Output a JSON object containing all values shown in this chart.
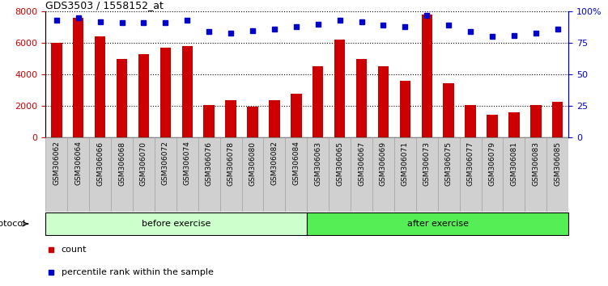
{
  "title": "GDS3503 / 1558152_at",
  "categories": [
    "GSM306062",
    "GSM306064",
    "GSM306066",
    "GSM306068",
    "GSM306070",
    "GSM306072",
    "GSM306074",
    "GSM306076",
    "GSM306078",
    "GSM306080",
    "GSM306082",
    "GSM306084",
    "GSM306063",
    "GSM306065",
    "GSM306067",
    "GSM306069",
    "GSM306071",
    "GSM306073",
    "GSM306075",
    "GSM306077",
    "GSM306079",
    "GSM306081",
    "GSM306083",
    "GSM306085"
  ],
  "bar_values": [
    6000,
    7600,
    6400,
    5000,
    5300,
    5700,
    5800,
    2050,
    2350,
    1950,
    2350,
    2750,
    4500,
    6200,
    5000,
    4500,
    3600,
    7800,
    3450,
    2050,
    1450,
    1600,
    2050,
    2250
  ],
  "percentile_values": [
    93,
    95,
    92,
    91,
    91,
    91,
    93,
    84,
    83,
    85,
    86,
    88,
    90,
    93,
    92,
    89,
    88,
    97,
    89,
    84,
    80,
    81,
    83,
    86
  ],
  "n_before": 12,
  "n_after": 12,
  "before_label": "before exercise",
  "after_label": "after exercise",
  "before_color": "#ccffcc",
  "after_color": "#55ee55",
  "bar_color": "#cc0000",
  "percentile_color": "#0000cc",
  "ylim_left": [
    0,
    8000
  ],
  "ylim_right": [
    0,
    100
  ],
  "yticks_left": [
    0,
    2000,
    4000,
    6000,
    8000
  ],
  "yticks_right": [
    0,
    25,
    50,
    75,
    100
  ],
  "ytick_labels_right": [
    "0",
    "25",
    "50",
    "75",
    "100%"
  ],
  "protocol_label": "protocol",
  "legend_count": "count",
  "legend_percentile": "percentile rank within the sample",
  "background_color": "#ffffff"
}
